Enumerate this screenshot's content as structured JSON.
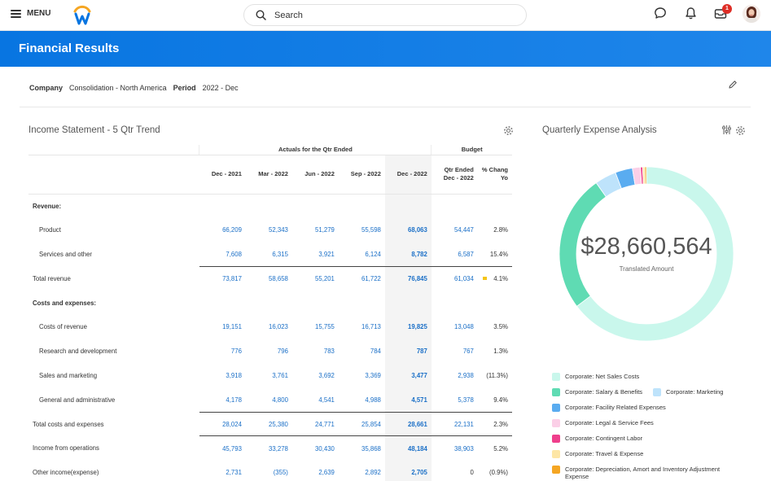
{
  "topbar": {
    "menu_label": "MENU",
    "search_placeholder": "Search",
    "notification_count": "1"
  },
  "page": {
    "title": "Financial Results"
  },
  "filters": {
    "company_label": "Company",
    "company_value": "Consolidation - North America",
    "period_label": "Period",
    "period_value": "2022 - Dec"
  },
  "income": {
    "title": "Income Statement - 5 Qtr Trend",
    "group_actuals": "Actuals for the Qtr Ended",
    "group_budget": "Budget",
    "columns": [
      "Dec - 2021",
      "Mar - 2022",
      "Jun - 2022",
      "Sep - 2022",
      "Dec - 2022"
    ],
    "budget_col_line1": "Qtr Ended",
    "budget_col_line2": "Dec - 2022",
    "pct_col_line1": "% Chang",
    "pct_col_line2": "Yo",
    "rows": [
      {
        "label": "Revenue:",
        "type": "section"
      },
      {
        "label": "Product",
        "type": "item",
        "values": [
          "66,209",
          "52,343",
          "51,279",
          "55,598",
          "68,063"
        ],
        "budget": "54,447",
        "pct": "2.8%"
      },
      {
        "label": "Services and other",
        "type": "item",
        "values": [
          "7,608",
          "6,315",
          "3,921",
          "6,124",
          "8,782"
        ],
        "budget": "6,587",
        "pct": "15.4%"
      },
      {
        "label": "Total revenue",
        "type": "total",
        "values": [
          "73,817",
          "58,658",
          "55,201",
          "61,722",
          "76,845"
        ],
        "budget": "61,034",
        "pct": "4.1%",
        "flag": true
      },
      {
        "label": "Costs and expenses:",
        "type": "section"
      },
      {
        "label": "Costs of revenue",
        "type": "item",
        "values": [
          "19,151",
          "16,023",
          "15,755",
          "16,713",
          "19,825"
        ],
        "budget": "13,048",
        "pct": "3.5%"
      },
      {
        "label": "Research and development",
        "type": "item",
        "values": [
          "776",
          "796",
          "783",
          "784",
          "787"
        ],
        "budget": "767",
        "pct": "1.3%"
      },
      {
        "label": "Sales and marketing",
        "type": "item",
        "values": [
          "3,918",
          "3,761",
          "3,692",
          "3,369",
          "3,477"
        ],
        "budget": "2,938",
        "pct": "(11.3%)"
      },
      {
        "label": "General and administrative",
        "type": "item",
        "values": [
          "4,178",
          "4,800",
          "4,541",
          "4,988",
          "4,571"
        ],
        "budget": "5,378",
        "pct": "9.4%"
      },
      {
        "label": "Total costs and expenses",
        "type": "total",
        "values": [
          "28,024",
          "25,380",
          "24,771",
          "25,854",
          "28,661"
        ],
        "budget": "22,131",
        "pct": "2.3%"
      },
      {
        "label": "Income from operations",
        "type": "total",
        "values": [
          "45,793",
          "33,278",
          "30,430",
          "35,868",
          "48,184"
        ],
        "budget": "38,903",
        "pct": "5.2%"
      },
      {
        "label": "Other income(expense)",
        "type": "toplevel",
        "values": [
          "2,731",
          "(355)",
          "2,639",
          "2,892",
          "2,705"
        ],
        "budget": "0",
        "pct": "(0.9%)"
      }
    ]
  },
  "expense": {
    "title": "Quarterly Expense Analysis",
    "total_value": "$28,660,564",
    "total_label": "Translated Amount",
    "chart_data": {
      "type": "pie",
      "variant": "donut",
      "total": 28660564,
      "categories": [
        "Corporate: Net Sales Costs",
        "Corporate: Salary & Benefits",
        "Corporate: Marketing",
        "Corporate: Facility Related Expenses",
        "Corporate: Legal & Service Fees",
        "Corporate: Contingent Labor",
        "Corporate: Travel & Expense",
        "Corporate: Depreciation, Amort and Inventory Adjustment Expense"
      ],
      "values_fraction": [
        0.648,
        0.255,
        0.04,
        0.032,
        0.015,
        0.004,
        0.004,
        0.003
      ],
      "colors": [
        "#c9f7ec",
        "#5fdbb3",
        "#bee3fb",
        "#5aacf0",
        "#fbcfe7",
        "#ef3f8c",
        "#fde6a6",
        "#f5a623"
      ],
      "legend_placement": "bottom"
    }
  }
}
